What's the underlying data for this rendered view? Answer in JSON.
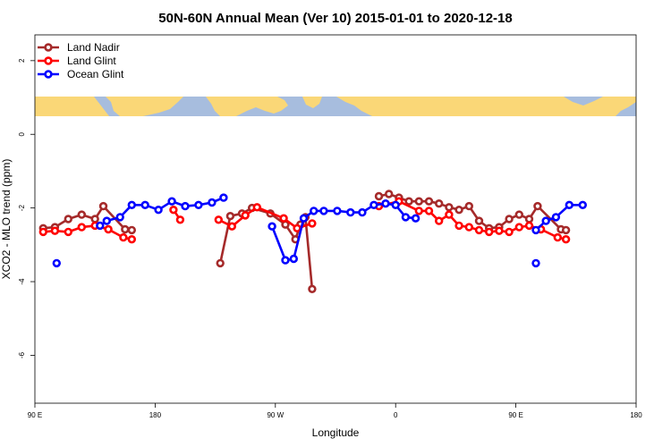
{
  "chart_data": {
    "type": "line",
    "title": "50N-60N Annual Mean (Ver 10)   2015-01-01 to 2020-12-18",
    "xlabel": "Longitude",
    "ylabel": "XCO2 - MLO trend (ppm)",
    "xlim": [
      90,
      450
    ],
    "ylim": [
      -7.3,
      2.7
    ],
    "x_ticks": [
      90,
      162,
      234,
      306,
      378,
      450
    ],
    "x_tick_labels": [
      "90 E",
      "180",
      "90 W",
      "0",
      "90 E",
      "180"
    ],
    "y_ticks": [
      -6,
      -4,
      -2,
      0,
      2
    ],
    "y_tick_labels": [
      "-6",
      "-4",
      "-2",
      "0",
      "2"
    ],
    "legend_position": "top-left",
    "series": [
      {
        "name": "Land Nadir",
        "color": "#a52a2a",
        "segments": [
          [
            [
              95,
              -2.55
            ],
            [
              102,
              -2.52
            ],
            [
              110,
              -2.3
            ],
            [
              118,
              -2.18
            ],
            [
              126,
              -2.3
            ],
            [
              131,
              -1.95
            ],
            [
              144,
              -2.58
            ],
            [
              148,
              -2.6
            ]
          ],
          [
            [
              201,
              -3.5
            ],
            [
              207,
              -2.22
            ],
            [
              214,
              -2.15
            ],
            [
              220,
              -2.0
            ],
            [
              231,
              -2.15
            ],
            [
              240,
              -2.45
            ],
            [
              246,
              -2.85
            ],
            [
              249,
              -2.45
            ],
            [
              252,
              -2.25
            ],
            [
              256,
              -4.2
            ]
          ],
          [
            [
              296,
              -1.68
            ],
            [
              302,
              -1.62
            ],
            [
              308,
              -1.72
            ],
            [
              314,
              -1.82
            ],
            [
              320,
              -1.82
            ],
            [
              326,
              -1.82
            ],
            [
              332,
              -1.88
            ],
            [
              338,
              -1.98
            ],
            [
              344,
              -2.05
            ],
            [
              350,
              -1.95
            ],
            [
              356,
              -2.35
            ],
            [
              362,
              -2.55
            ],
            [
              368,
              -2.52
            ],
            [
              374,
              -2.3
            ],
            [
              380,
              -2.18
            ],
            [
              386,
              -2.3
            ],
            [
              391,
              -1.95
            ],
            [
              405,
              -2.58
            ],
            [
              408,
              -2.6
            ]
          ]
        ]
      },
      {
        "name": "Land Glint",
        "color": "#ff0000",
        "segments": [
          [
            [
              95,
              -2.65
            ],
            [
              102,
              -2.62
            ],
            [
              110,
              -2.65
            ],
            [
              118,
              -2.52
            ],
            [
              126,
              -2.48
            ],
            [
              134,
              -2.58
            ],
            [
              143,
              -2.8
            ],
            [
              148,
              -2.85
            ]
          ],
          [
            [
              173,
              -2.05
            ],
            [
              177,
              -2.32
            ]
          ],
          [
            [
              200,
              -2.32
            ],
            [
              208,
              -2.5
            ],
            [
              216,
              -2.2
            ],
            [
              223,
              -1.98
            ],
            [
              239,
              -2.28
            ],
            [
              247,
              -2.55
            ],
            [
              256,
              -2.42
            ]
          ],
          [
            [
              296,
              -1.95
            ],
            [
              308,
              -1.82
            ],
            [
              320,
              -2.08
            ],
            [
              326,
              -2.08
            ],
            [
              332,
              -2.35
            ],
            [
              338,
              -2.18
            ],
            [
              344,
              -2.48
            ],
            [
              350,
              -2.52
            ],
            [
              356,
              -2.6
            ],
            [
              362,
              -2.65
            ],
            [
              368,
              -2.62
            ],
            [
              374,
              -2.65
            ],
            [
              380,
              -2.52
            ],
            [
              386,
              -2.48
            ],
            [
              393,
              -2.58
            ],
            [
              403,
              -2.8
            ],
            [
              408,
              -2.85
            ]
          ]
        ]
      },
      {
        "name": "Ocean Glint",
        "color": "#0000ff",
        "segments": [
          [
            [
              103,
              -3.5
            ]
          ],
          [
            [
              129,
              -2.48
            ],
            [
              133,
              -2.35
            ],
            [
              141,
              -2.25
            ],
            [
              148,
              -1.92
            ],
            [
              156,
              -1.92
            ],
            [
              164,
              -2.05
            ],
            [
              172,
              -1.82
            ],
            [
              180,
              -1.95
            ],
            [
              188,
              -1.92
            ],
            [
              196,
              -1.85
            ],
            [
              203,
              -1.72
            ]
          ],
          [
            [
              232,
              -2.5
            ],
            [
              240,
              -3.42
            ],
            [
              245,
              -3.38
            ],
            [
              251,
              -2.28
            ],
            [
              257,
              -2.08
            ],
            [
              263,
              -2.08
            ],
            [
              271,
              -2.08
            ],
            [
              279,
              -2.12
            ],
            [
              286,
              -2.12
            ],
            [
              293,
              -1.92
            ],
            [
              300,
              -1.88
            ],
            [
              306,
              -1.92
            ],
            [
              312,
              -2.25
            ],
            [
              318,
              -2.28
            ]
          ],
          [
            [
              390,
              -2.6
            ],
            [
              396,
              -2.35
            ],
            [
              402,
              -2.25
            ],
            [
              410,
              -1.92
            ],
            [
              418,
              -1.92
            ]
          ],
          [
            [
              390,
              -3.5
            ]
          ]
        ]
      }
    ]
  }
}
